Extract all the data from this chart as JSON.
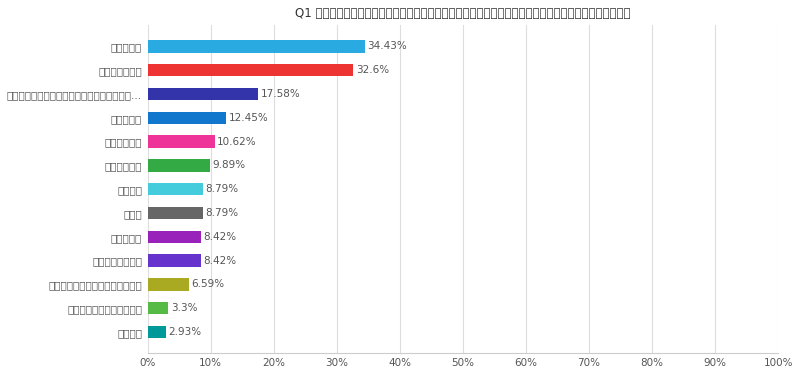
{
  "title": "Q1 借金するに至った主な理由を教えてください。下記のうちあてはまるものをすべてお選びください。",
  "categories": [
    "住宅ローン",
    "生活苦・低所得",
    "商品・サービス購入（クレジットカードやカ...",
    "ギャンブル",
    "病気、医療費",
    "浪費・遊興費",
    "教育資金",
    "その他",
    "失業・転職",
    "事業資金の補てん",
    "投資（株式、会員権、不動産等）",
    "保証債務・借金の肩代わり",
    "冠婚葬祭"
  ],
  "values": [
    34.43,
    32.6,
    17.58,
    12.45,
    10.62,
    9.89,
    8.79,
    8.79,
    8.42,
    8.42,
    6.59,
    3.3,
    2.93
  ],
  "colors": [
    "#29ABE2",
    "#EE3333",
    "#3333AA",
    "#1177CC",
    "#EE3399",
    "#33AA44",
    "#44CCDD",
    "#666666",
    "#9922BB",
    "#6633CC",
    "#AAAA22",
    "#55BB44",
    "#009999"
  ],
  "xlim": [
    0,
    100
  ],
  "xticks": [
    0,
    10,
    20,
    30,
    40,
    50,
    60,
    70,
    80,
    90,
    100
  ],
  "xticklabels": [
    "0%",
    "10%",
    "20%",
    "30%",
    "40%",
    "50%",
    "60%",
    "70%",
    "80%",
    "90%",
    "100%"
  ],
  "title_fontsize": 8.5,
  "label_fontsize": 7.5,
  "value_fontsize": 7.5,
  "tick_fontsize": 7.5,
  "bar_height": 0.52,
  "background_color": "#FFFFFF"
}
